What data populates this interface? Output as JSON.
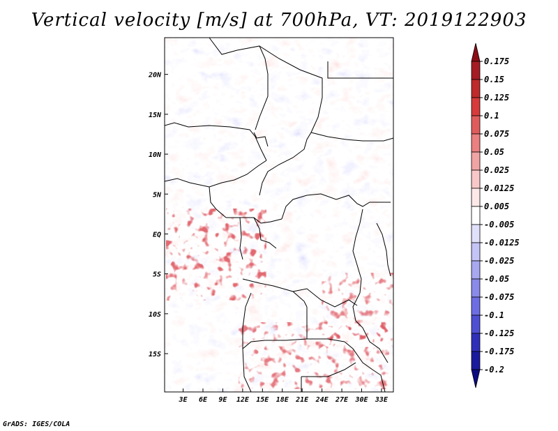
{
  "chart_data": {
    "type": "heatmap",
    "title": "Vertical velocity [m/s] at 700hPa, VT: 2019122903",
    "variable": "Vertical velocity",
    "units": "m/s",
    "level": "700hPa",
    "valid_time": "2019122903",
    "x_ticks": [
      "3E",
      "6E",
      "9E",
      "12E",
      "15E",
      "18E",
      "21E",
      "24E",
      "27E",
      "30E",
      "33E"
    ],
    "x_tick_values": [
      3,
      6,
      9,
      12,
      15,
      18,
      21,
      24,
      27,
      30,
      33
    ],
    "y_ticks": [
      "20N",
      "15N",
      "10N",
      "5N",
      "EQ",
      "5S",
      "10S",
      "15S"
    ],
    "y_tick_values": [
      20,
      15,
      10,
      5,
      0,
      -5,
      -10,
      -15
    ],
    "xlim": [
      0.2,
      34.8
    ],
    "ylim": [
      -19.8,
      24.6
    ],
    "colorbar": {
      "labels": [
        "0.175",
        "0.15",
        "0.125",
        "0.1",
        "0.075",
        "0.05",
        "0.025",
        "0.0125",
        "0.005",
        "-0.005",
        "-0.0125",
        "-0.025",
        "-0.05",
        "-0.075",
        "-0.1",
        "-0.125",
        "-0.175",
        "-0.2"
      ],
      "colors": [
        "#8b0d14",
        "#a51c24",
        "#bf2a2a",
        "#d63a3a",
        "#e05c5c",
        "#ea8080",
        "#f1a4a4",
        "#f8c8c8",
        "#fde8e8",
        "#ffffff",
        "#e0e0fb",
        "#c4c4f6",
        "#a8a8f0",
        "#8a8aea",
        "#6e6ee4",
        "#4f4fd4",
        "#2f2fba",
        "#1a1a9e",
        "#0a0a82"
      ]
    }
  },
  "footer": "GrADS: IGES/COLA"
}
